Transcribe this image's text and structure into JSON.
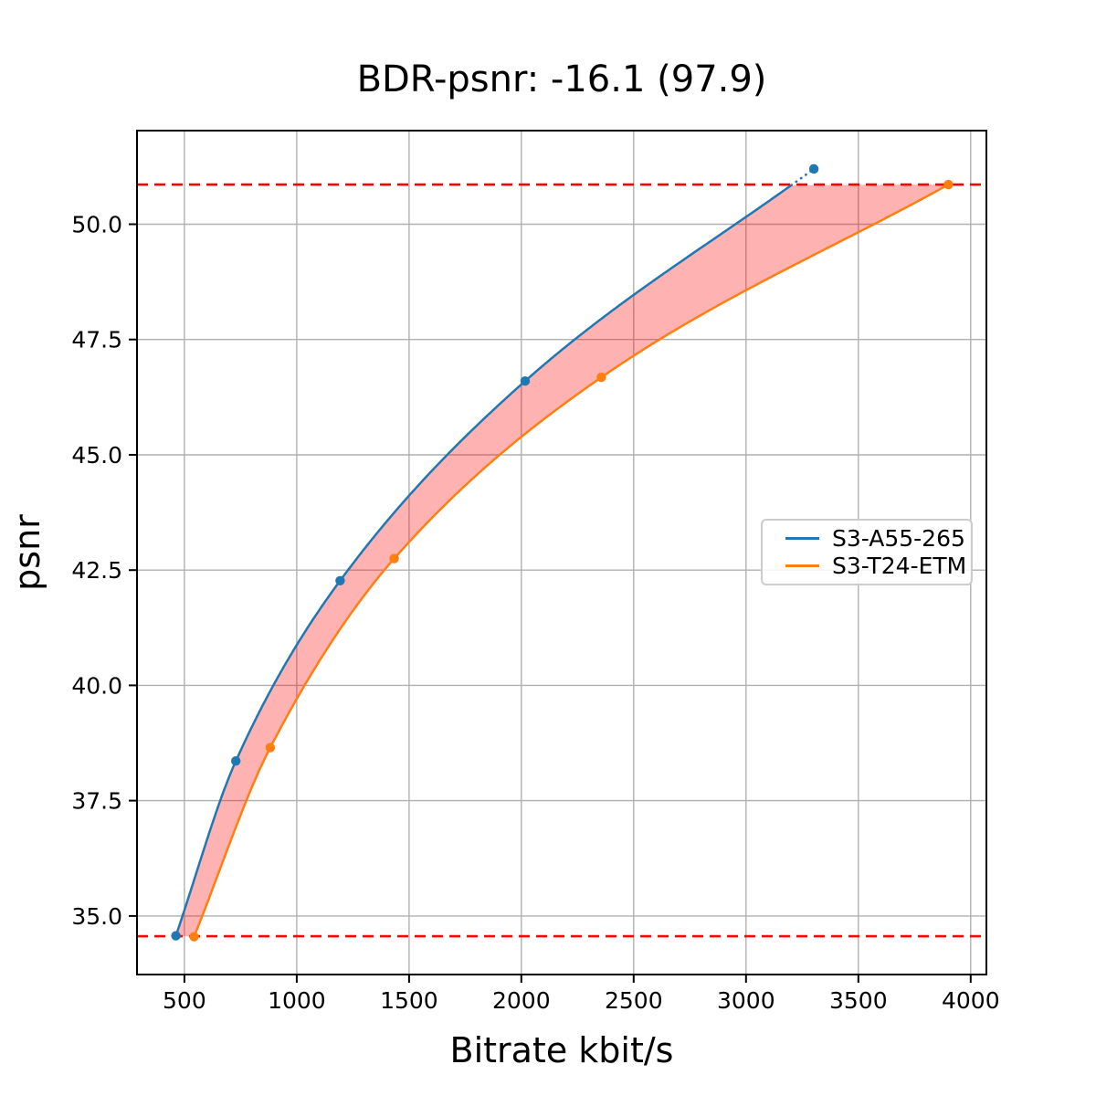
{
  "title": "BDR-psnr: -16.1 (97.9)",
  "chart_data": {
    "type": "line",
    "title": "BDR-psnr: -16.1 (97.9)",
    "xlabel": "Bitrate kbit/s",
    "ylabel": "psnr",
    "xlim": [
      289,
      4070
    ],
    "ylim": [
      33.73,
      52.03
    ],
    "grid": true,
    "xticks": [
      500,
      1000,
      1500,
      2000,
      2500,
      3000,
      3500,
      4000
    ],
    "xtick_labels": [
      "500",
      "1000",
      "1500",
      "2000",
      "2500",
      "3000",
      "3500",
      "4000"
    ],
    "yticks": [
      35.0,
      37.5,
      40.0,
      42.5,
      45.0,
      47.5,
      50.0
    ],
    "ytick_labels": [
      "35.0",
      "37.5",
      "40.0",
      "42.5",
      "45.0",
      "47.5",
      "50.0"
    ],
    "series": [
      {
        "name": "S3-A55-265",
        "color": "#1f77b4",
        "marker": "circle",
        "x": [
          462,
          729,
          1193,
          2017,
          3302
        ],
        "y": [
          34.57,
          38.36,
          42.27,
          46.6,
          51.2
        ]
      },
      {
        "name": "S3-T24-ETM",
        "color": "#ff7f0e",
        "marker": "circle",
        "x": [
          543,
          882,
          1434,
          2356,
          3901
        ],
        "y": [
          34.55,
          38.65,
          42.75,
          46.68,
          50.86
        ]
      }
    ],
    "overlap_hlines": {
      "color": "#ff0000",
      "style": "dashed",
      "values": [
        50.86,
        34.56
      ]
    },
    "fill_between": {
      "color": "#ff0000",
      "opacity": 0.3
    },
    "legend": {
      "location": "center right",
      "entries": [
        {
          "label": "S3-A55-265",
          "color": "#1f77b4"
        },
        {
          "label": "S3-T24-ETM",
          "color": "#ff7f0e"
        }
      ]
    },
    "colors": {
      "grid": "#b0b0b0",
      "spine": "#000000",
      "text": "#000000"
    }
  }
}
